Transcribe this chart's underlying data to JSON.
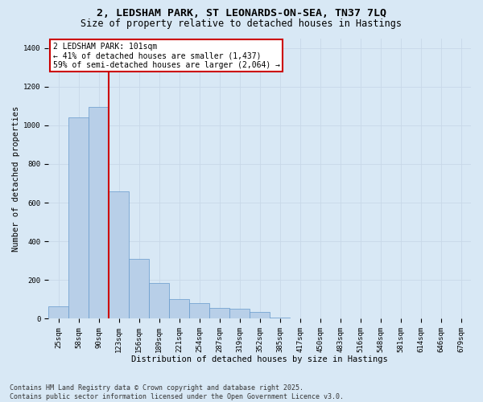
{
  "title1": "2, LEDSHAM PARK, ST LEONARDS-ON-SEA, TN37 7LQ",
  "title2": "Size of property relative to detached houses in Hastings",
  "xlabel": "Distribution of detached houses by size in Hastings",
  "ylabel": "Number of detached properties",
  "categories": [
    "25sqm",
    "58sqm",
    "90sqm",
    "123sqm",
    "156sqm",
    "189sqm",
    "221sqm",
    "254sqm",
    "287sqm",
    "319sqm",
    "352sqm",
    "385sqm",
    "417sqm",
    "450sqm",
    "483sqm",
    "516sqm",
    "548sqm",
    "581sqm",
    "614sqm",
    "646sqm",
    "679sqm"
  ],
  "values": [
    65,
    1040,
    1095,
    660,
    310,
    185,
    100,
    80,
    55,
    50,
    35,
    5,
    0,
    0,
    0,
    0,
    0,
    0,
    0,
    0,
    0
  ],
  "bar_color": "#b8cfe8",
  "bar_edgecolor": "#6699cc",
  "vline_color": "#cc0000",
  "annotation_text": "2 LEDSHAM PARK: 101sqm\n← 41% of detached houses are smaller (1,437)\n59% of semi-detached houses are larger (2,064) →",
  "annotation_box_facecolor": "#ffffff",
  "annotation_box_edgecolor": "#cc0000",
  "ylim": [
    0,
    1450
  ],
  "yticks": [
    0,
    200,
    400,
    600,
    800,
    1000,
    1200,
    1400
  ],
  "grid_color": "#c8d8e8",
  "background_color": "#d8e8f5",
  "footer": "Contains HM Land Registry data © Crown copyright and database right 2025.\nContains public sector information licensed under the Open Government Licence v3.0.",
  "title_fontsize": 9.5,
  "subtitle_fontsize": 8.5,
  "axis_label_fontsize": 7.5,
  "tick_fontsize": 6.5,
  "annotation_fontsize": 7,
  "footer_fontsize": 6
}
